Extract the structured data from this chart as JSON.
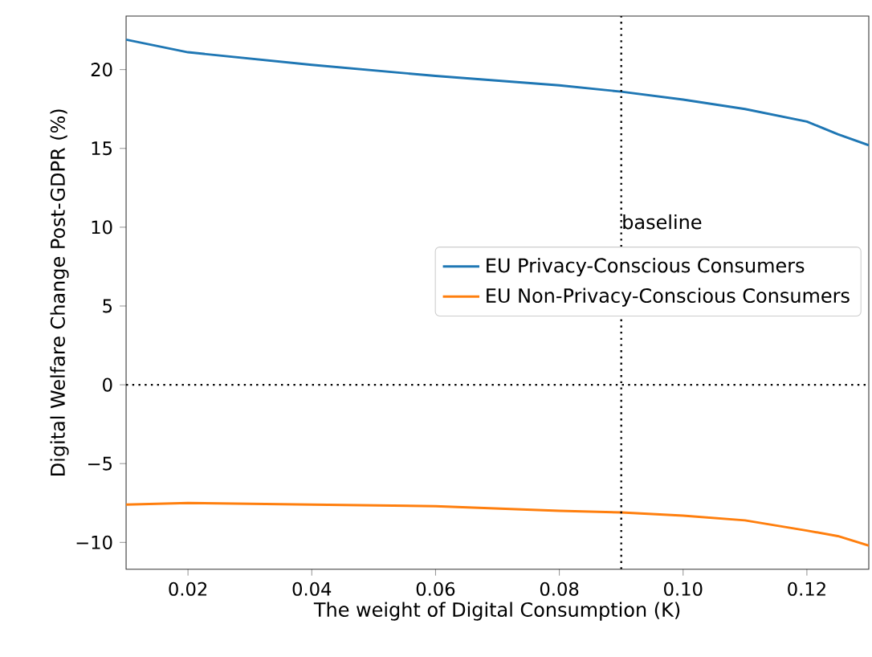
{
  "chart_data": {
    "type": "line",
    "xlabel": "The weight of Digital Consumption (K)",
    "ylabel": "Digital Welfare Change Post-GDPR (%)",
    "x": [
      0.01,
      0.02,
      0.04,
      0.06,
      0.08,
      0.09,
      0.1,
      0.11,
      0.12,
      0.125,
      0.13
    ],
    "series": [
      {
        "name": "EU Privacy-Conscious Consumers",
        "color": "#1f77b4",
        "values": [
          21.9,
          21.1,
          20.3,
          19.6,
          19.0,
          18.6,
          18.1,
          17.5,
          16.7,
          15.9,
          15.2
        ]
      },
      {
        "name": "EU Non-Privacy-Conscious Consumers",
        "color": "#ff7f0e",
        "values": [
          -7.6,
          -7.5,
          -7.6,
          -7.7,
          -8.0,
          -8.1,
          -8.3,
          -8.6,
          -9.25,
          -9.6,
          -10.2
        ]
      }
    ],
    "xlim": [
      0.01,
      0.13
    ],
    "ylim": [
      -11.7,
      23.4
    ],
    "xticks": [
      0.02,
      0.04,
      0.06,
      0.08,
      {
        "value": 0.1,
        "label": "0.10"
      },
      0.12
    ],
    "yticks": [
      {
        "value": -10,
        "label": "−10"
      },
      {
        "value": -5,
        "label": "−5"
      },
      0,
      5,
      10,
      15,
      20
    ],
    "ref_lines": [
      {
        "axis": "x",
        "value": 0.09,
        "label": "baseline",
        "color": "#000000",
        "line_style": "dotted"
      },
      {
        "axis": "y",
        "value": 0,
        "color": "#000000",
        "line_style": "dotted"
      }
    ],
    "legend": "right",
    "grid": false,
    "marker": "none",
    "line_style": "solid"
  }
}
